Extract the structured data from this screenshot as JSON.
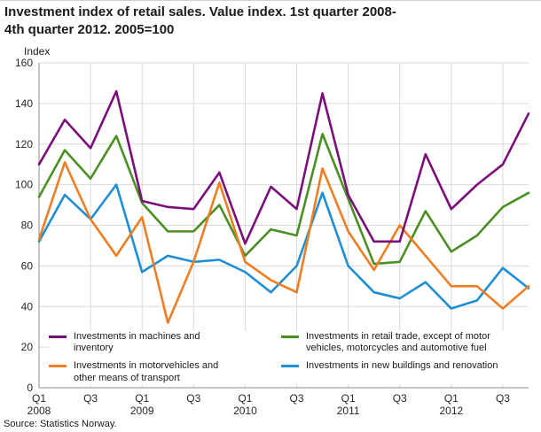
{
  "header": {
    "title_line1": "Investment index of retail sales. Value index. 1st quarter 2008-",
    "title_line2": "4th quarter 2012. 2005=100"
  },
  "footer": {
    "source": "Source: Statistics Norway."
  },
  "chart_data": {
    "type": "line",
    "title": "Investment index of retail sales. Value index. 1st quarter 2008-4th quarter 2012. 2005=100",
    "ylabel": "Index",
    "xlabel": "",
    "ylim": [
      0,
      160
    ],
    "ytick_step": 20,
    "grid": true,
    "legend_position": "bottom-inside",
    "x_labels": [
      "2008 Q1",
      "2008 Q2",
      "2008 Q3",
      "2008 Q4",
      "2009 Q1",
      "2009 Q2",
      "2009 Q3",
      "2009 Q4",
      "2010 Q1",
      "2010 Q2",
      "2010 Q3",
      "2010 Q4",
      "2011 Q1",
      "2011 Q2",
      "2011 Q3",
      "2011 Q4",
      "2012 Q1",
      "2012 Q2",
      "2012 Q3",
      "2012 Q4"
    ],
    "x_ticks": [
      {
        "index": 0,
        "label": "Q1",
        "year": "2008"
      },
      {
        "index": 2,
        "label": "Q3"
      },
      {
        "index": 4,
        "label": "Q1",
        "year": "2009"
      },
      {
        "index": 6,
        "label": "Q3"
      },
      {
        "index": 8,
        "label": "Q1",
        "year": "2010"
      },
      {
        "index": 10,
        "label": "Q3"
      },
      {
        "index": 12,
        "label": "Q1",
        "year": "2011"
      },
      {
        "index": 14,
        "label": "Q3"
      },
      {
        "index": 16,
        "label": "Q1",
        "year": "2012"
      },
      {
        "index": 18,
        "label": "Q3"
      }
    ],
    "series": [
      {
        "name": "Investments in machines and inventory",
        "color": "#7b0e7b",
        "values": [
          110,
          132,
          118,
          146,
          92,
          89,
          88,
          106,
          71,
          99,
          88,
          145,
          95,
          72,
          72,
          115,
          88,
          100,
          110,
          135
        ]
      },
      {
        "name": "Investments in motorvehicles and other means of transport",
        "color": "#ee7d23",
        "values": [
          73,
          111,
          83,
          65,
          84,
          32,
          62,
          101,
          62,
          53,
          47,
          108,
          77,
          58,
          80,
          65,
          50,
          50,
          39,
          50
        ]
      },
      {
        "name": "Investments in retail trade, except of motor vehicles, motorcycles and automotive fuel",
        "color": "#4a8f22",
        "values": [
          94,
          117,
          103,
          124,
          91,
          77,
          77,
          90,
          65,
          78,
          75,
          125,
          93,
          61,
          62,
          87,
          67,
          75,
          89,
          96
        ]
      },
      {
        "name": "Investments in new buildings and renovation",
        "color": "#1e8fd5",
        "values": [
          72,
          95,
          83,
          100,
          57,
          65,
          62,
          63,
          57,
          47,
          60,
          96,
          60,
          47,
          44,
          52,
          39,
          43,
          59,
          49
        ]
      }
    ]
  }
}
